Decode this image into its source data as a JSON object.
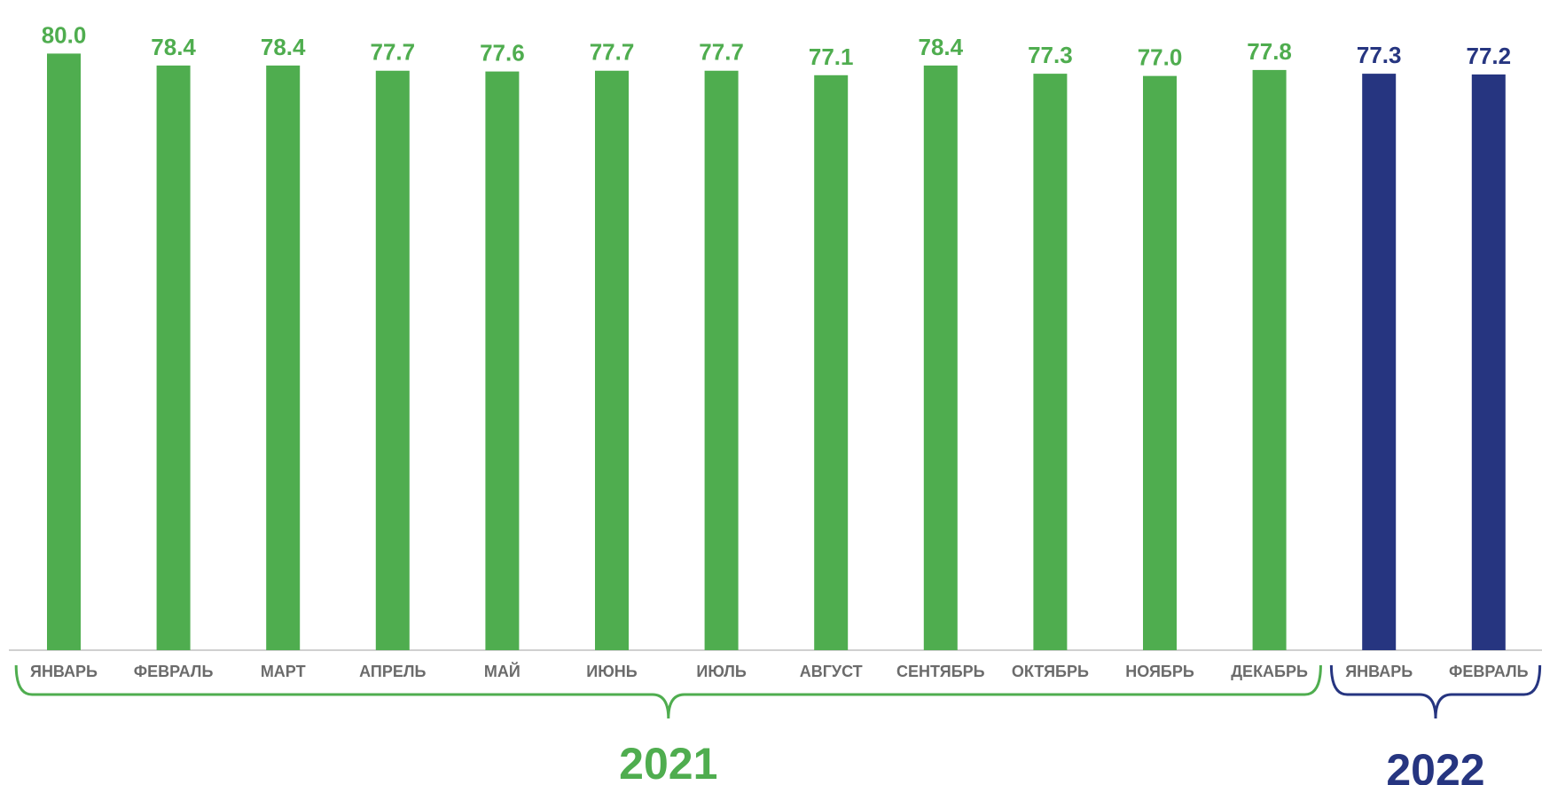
{
  "chart_data": {
    "type": "bar",
    "categories": [
      "ЯНВАРЬ",
      "ФЕВРАЛЬ",
      "МАРТ",
      "АПРЕЛЬ",
      "МАЙ",
      "ИЮНЬ",
      "ИЮЛЬ",
      "АВГУСТ",
      "СЕНТЯБРЬ",
      "ОКТЯБРЬ",
      "НОЯБРЬ",
      "ДЕКАБРЬ",
      "ЯНВАРЬ",
      "ФЕВРАЛЬ"
    ],
    "values": [
      80.0,
      78.4,
      78.4,
      77.7,
      77.6,
      77.7,
      77.7,
      77.1,
      78.4,
      77.3,
      77.0,
      77.8,
      77.3,
      77.2
    ],
    "value_labels": [
      "80.0",
      "78.4",
      "78.4",
      "77.7",
      "77.6",
      "77.7",
      "77.7",
      "77.1",
      "78.4",
      "77.3",
      "77.0",
      "77.8",
      "77.3",
      "77.2"
    ],
    "groups": [
      {
        "label": "2021",
        "start": 0,
        "end": 11,
        "color": "#4fad4f"
      },
      {
        "label": "2022",
        "start": 12,
        "end": 13,
        "color": "#263580"
      }
    ],
    "title": "",
    "xlabel": "",
    "ylabel": "",
    "ylim": [
      0,
      81
    ],
    "grid": false,
    "legend": "none"
  }
}
